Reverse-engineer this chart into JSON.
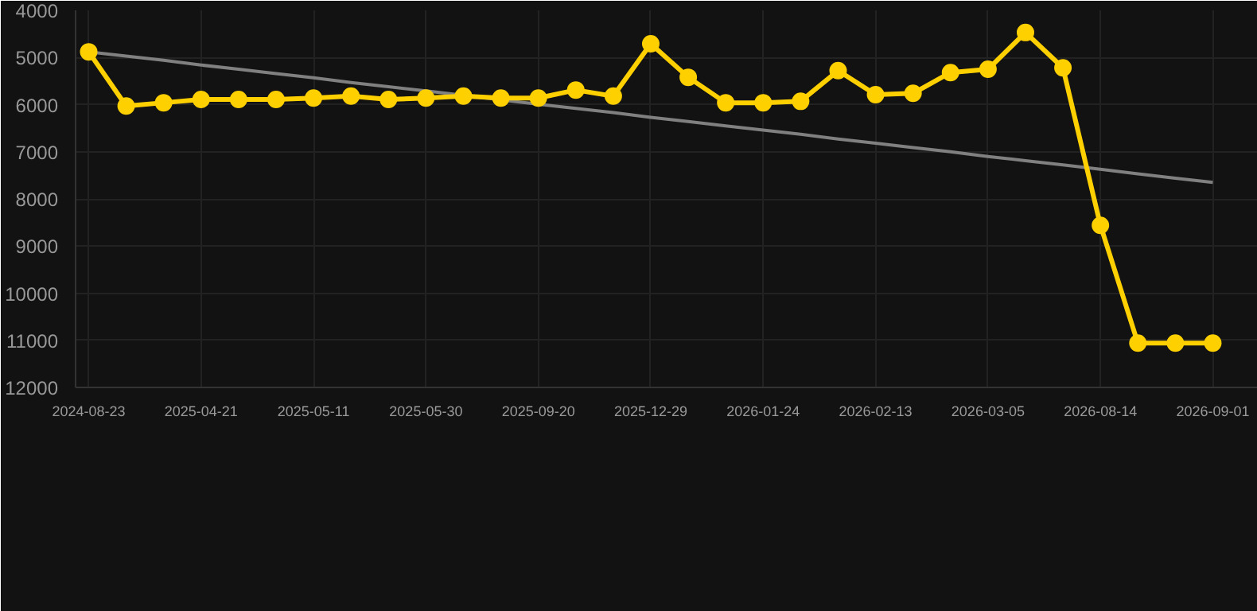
{
  "chart_data": {
    "type": "line",
    "categories": [
      "2024-08-23",
      null,
      null,
      "2025-04-21",
      null,
      null,
      "2025-05-11",
      null,
      null,
      "2025-05-30",
      null,
      null,
      "2025-09-20",
      null,
      null,
      "2025-12-29",
      null,
      null,
      "2026-01-24",
      null,
      null,
      "2026-02-13",
      null,
      null,
      "2026-03-05",
      null,
      null,
      "2026-08-14",
      null,
      null,
      "2026-09-01"
    ],
    "series": [
      {
        "color": "#ffd000",
        "marker": "circle",
        "values": [
          4880,
          6030,
          5960,
          5890,
          5890,
          5890,
          5860,
          5820,
          5890,
          5860,
          5820,
          5860,
          5860,
          5690,
          5820,
          4710,
          5420,
          5960,
          5960,
          5930,
          5280,
          5790,
          5760,
          5320,
          5250,
          4470,
          5220,
          8560,
          11060,
          11060,
          11060
        ]
      },
      {
        "color": "#808080",
        "marker": "none",
        "values": [
          4880,
          4970,
          5060,
          5160,
          5250,
          5340,
          5430,
          5530,
          5620,
          5710,
          5800,
          5900,
          5990,
          6080,
          6170,
          6270,
          6360,
          6450,
          6540,
          6630,
          6730,
          6820,
          6910,
          7000,
          7100,
          7190,
          7280,
          7370,
          7470,
          7560,
          7650
        ]
      }
    ],
    "ylim": [
      12000,
      4000
    ],
    "yticks": [
      4000,
      5000,
      6000,
      7000,
      8000,
      9000,
      10000,
      11000,
      12000
    ],
    "grid": true
  }
}
